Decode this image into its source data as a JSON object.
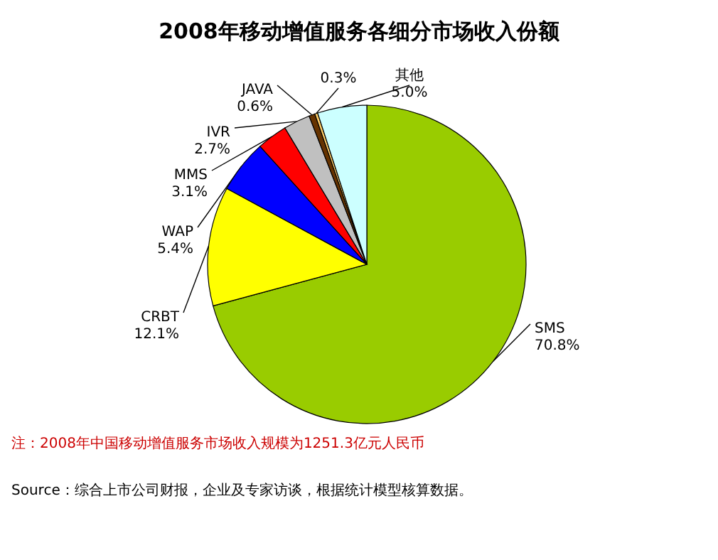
{
  "chart_data": {
    "type": "pie",
    "title": "2008年移动增值服务各细分市场收入份额",
    "categories": [
      "SMS",
      "CRBT",
      "WAP",
      "MMS",
      "IVR",
      "JAVA",
      null,
      "其他"
    ],
    "values": [
      70.8,
      12.1,
      5.4,
      3.1,
      2.7,
      0.6,
      0.3,
      5.0
    ],
    "value_labels": [
      "70.8%",
      "12.1%",
      "5.4%",
      "3.1%",
      "2.7%",
      "0.6%",
      "0.3%",
      "5.0%"
    ],
    "colors": [
      "#99cc00",
      "#ffff00",
      "#0000ff",
      "#ff0000",
      "#c0c0c0",
      "#663300",
      "#ffcc66",
      "#ccffff"
    ],
    "annotations": [
      "注：2008年中国移动增值服务市场收入规模为1251.3亿元人民币",
      "Source：综合上市公司财报，企业及专家访谈，根据统计模型核算数据。"
    ]
  }
}
